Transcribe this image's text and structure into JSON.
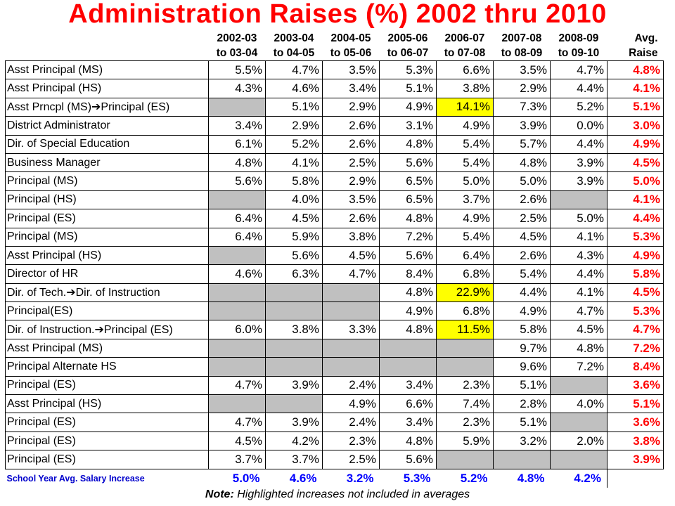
{
  "title": "Administration Raises (%) 2002 thru 2010",
  "headers": [
    {
      "line1": "2002-03",
      "line2": "to 03-04"
    },
    {
      "line1": "2003-04",
      "line2": "to 04-05"
    },
    {
      "line1": "2004-05",
      "line2": "to 05-06"
    },
    {
      "line1": "2005-06",
      "line2": "to 06-07"
    },
    {
      "line1": "2006-07",
      "line2": "to 07-08"
    },
    {
      "line1": "2007-08",
      "line2": "to 08-09"
    },
    {
      "line1": "2008-09",
      "line2": "to 09-10"
    },
    {
      "line1": "Avg.",
      "line2": "Raise"
    }
  ],
  "arrow_glyph": "➔",
  "chart_data": {
    "type": "table",
    "title": "Administration Raises (%) 2002 thru 2010",
    "columns": [
      "2002-03 to 03-04",
      "2003-04 to 04-05",
      "2004-05 to 05-06",
      "2005-06 to 06-07",
      "2006-07 to 07-08",
      "2007-08 to 08-09",
      "2008-09 to 09-10",
      "Avg. Raise"
    ],
    "highlight_color": "#ffff00",
    "blank_color": "#c0c0c0",
    "avg_color": "#ff0000",
    "rows": [
      {
        "name": [
          "Asst Principal (MS)"
        ],
        "values": [
          "5.5%",
          "4.7%",
          "3.5%",
          "5.3%",
          "6.6%",
          "3.5%",
          "4.7%"
        ],
        "highlight": [],
        "avg": "4.8%"
      },
      {
        "name": [
          "Asst Principal (HS)"
        ],
        "values": [
          "4.3%",
          "4.6%",
          "3.4%",
          "5.1%",
          "3.8%",
          "2.9%",
          "4.4%"
        ],
        "highlight": [],
        "avg": "4.1%"
      },
      {
        "name": [
          "Asst Prncpl (MS)",
          "Principal (ES)"
        ],
        "values": [
          null,
          "5.1%",
          "2.9%",
          "4.9%",
          "14.1%",
          "7.3%",
          "5.2%"
        ],
        "highlight": [
          4
        ],
        "avg": "5.1%"
      },
      {
        "name": [
          "District Administrator"
        ],
        "values": [
          "3.4%",
          "2.9%",
          "2.6%",
          "3.1%",
          "4.9%",
          "3.9%",
          "0.0%"
        ],
        "highlight": [],
        "avg": "3.0%"
      },
      {
        "name": [
          "Dir. of Special Education"
        ],
        "values": [
          "6.1%",
          "5.2%",
          "2.6%",
          "4.8%",
          "5.4%",
          "5.7%",
          "4.4%"
        ],
        "highlight": [],
        "avg": "4.9%"
      },
      {
        "name": [
          "Business Manager"
        ],
        "values": [
          "4.8%",
          "4.1%",
          "2.5%",
          "5.6%",
          "5.4%",
          "4.8%",
          "3.9%"
        ],
        "highlight": [],
        "avg": "4.5%"
      },
      {
        "name": [
          "Principal (MS)"
        ],
        "values": [
          "5.6%",
          "5.8%",
          "2.9%",
          "6.5%",
          "5.0%",
          "5.0%",
          "3.9%"
        ],
        "highlight": [],
        "avg": "5.0%"
      },
      {
        "name": [
          "Principal (HS)"
        ],
        "values": [
          null,
          "4.0%",
          "3.5%",
          "6.5%",
          "3.7%",
          "2.6%",
          null
        ],
        "highlight": [],
        "avg": "4.1%"
      },
      {
        "name": [
          "Principal (ES)"
        ],
        "values": [
          "6.4%",
          "4.5%",
          "2.6%",
          "4.8%",
          "4.9%",
          "2.5%",
          "5.0%"
        ],
        "highlight": [],
        "avg": "4.4%"
      },
      {
        "name": [
          "Principal (MS)"
        ],
        "values": [
          "6.4%",
          "5.9%",
          "3.8%",
          "7.2%",
          "5.4%",
          "4.5%",
          "4.1%"
        ],
        "highlight": [],
        "avg": "5.3%"
      },
      {
        "name": [
          "Asst Principal (HS)"
        ],
        "values": [
          null,
          "5.6%",
          "4.5%",
          "5.6%",
          "6.4%",
          "2.6%",
          "4.3%"
        ],
        "highlight": [],
        "avg": "4.9%"
      },
      {
        "name": [
          "Director of HR"
        ],
        "values": [
          "4.6%",
          "6.3%",
          "4.7%",
          "8.4%",
          "6.8%",
          "5.4%",
          "4.4%"
        ],
        "highlight": [],
        "avg": "5.8%"
      },
      {
        "name": [
          "Dir. of Tech.",
          "Dir. of Instruction"
        ],
        "values": [
          null,
          null,
          null,
          "4.8%",
          "22.9%",
          "4.4%",
          "4.1%"
        ],
        "highlight": [
          4
        ],
        "avg": "4.5%"
      },
      {
        "name": [
          "Principal(ES)"
        ],
        "values": [
          null,
          null,
          null,
          "4.9%",
          "6.8%",
          "4.9%",
          "4.7%"
        ],
        "highlight": [],
        "avg": "5.3%"
      },
      {
        "name": [
          "Dir. of Instruction.",
          "Principal (ES)"
        ],
        "values": [
          "6.0%",
          "3.8%",
          "3.3%",
          "4.8%",
          "11.5%",
          "5.8%",
          "4.5%"
        ],
        "highlight": [
          4
        ],
        "avg": "4.7%"
      },
      {
        "name": [
          "Asst Principal (MS)"
        ],
        "values": [
          null,
          null,
          null,
          null,
          null,
          "9.7%",
          "4.8%"
        ],
        "highlight": [],
        "avg": "7.2%"
      },
      {
        "name": [
          "Principal Alternate HS"
        ],
        "values": [
          null,
          null,
          null,
          null,
          null,
          "9.6%",
          "7.2%"
        ],
        "highlight": [],
        "avg": "8.4%"
      },
      {
        "name": [
          "Principal (ES)"
        ],
        "values": [
          "4.7%",
          "3.9%",
          "2.4%",
          "3.4%",
          "2.3%",
          "5.1%",
          null
        ],
        "highlight": [],
        "avg": "3.6%"
      },
      {
        "name": [
          "Asst Principal (HS)"
        ],
        "values": [
          null,
          null,
          "4.9%",
          "6.6%",
          "7.4%",
          "2.8%",
          "4.0%"
        ],
        "highlight": [],
        "avg": "5.1%"
      },
      {
        "name": [
          "Principal (ES)"
        ],
        "values": [
          "4.7%",
          "3.9%",
          "2.4%",
          "3.4%",
          "2.3%",
          "5.1%",
          null
        ],
        "highlight": [],
        "avg": "3.6%"
      },
      {
        "name": [
          "Principal (ES)"
        ],
        "values": [
          "4.5%",
          "4.2%",
          "2.3%",
          "4.8%",
          "5.9%",
          "3.2%",
          "2.0%"
        ],
        "highlight": [],
        "avg": "3.8%"
      },
      {
        "name": [
          "Principal (ES)"
        ],
        "values": [
          "3.7%",
          "3.7%",
          "2.5%",
          "5.6%",
          null,
          null,
          null
        ],
        "highlight": [],
        "avg": "3.9%"
      }
    ],
    "footer": {
      "label": "School Year Avg. Salary Increase",
      "values": [
        "5.0%",
        "4.6%",
        "3.2%",
        "5.3%",
        "5.2%",
        "4.8%",
        "4.2%"
      ]
    }
  },
  "note": {
    "bold": "Note:",
    "text": "Highlighted increases not included in averages"
  }
}
